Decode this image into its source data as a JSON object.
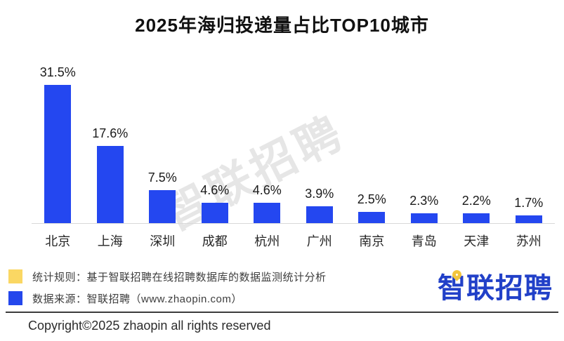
{
  "title": "2025年海归投递量占比TOP10城市",
  "watermark": "智联招聘",
  "chart_data": {
    "type": "bar",
    "title": "2025年海归投递量占比TOP10城市",
    "categories": [
      "北京",
      "上海",
      "深圳",
      "成都",
      "杭州",
      "广州",
      "南京",
      "青岛",
      "天津",
      "苏州"
    ],
    "values": [
      31.5,
      17.6,
      7.5,
      4.6,
      4.6,
      3.9,
      2.5,
      2.3,
      2.2,
      1.7
    ],
    "labels": [
      "31.5%",
      "17.6%",
      "7.5%",
      "4.6%",
      "4.6%",
      "3.9%",
      "2.5%",
      "2.3%",
      "2.2%",
      "1.7%"
    ],
    "xlabel": "",
    "ylabel": "",
    "ylim": [
      0,
      35
    ],
    "grid": false,
    "legend_position": "none",
    "bar_color": "#2447f0"
  },
  "notes": [
    {
      "swatch_color": "#fad763",
      "text": "统计规则：基于智联招聘在线招聘数据库的数据监测统计分析"
    },
    {
      "swatch_color": "#2447ec",
      "text": "数据来源：智联招聘（www.zhaopin.com）"
    }
  ],
  "logo": {
    "text": "智联招聘",
    "pin_color": "#f2c53d",
    "text_color": "#2140c8"
  },
  "copyright": "Copyright©2025 zhaopin all rights reserved",
  "colors": {
    "bar_blue": "#2447f0",
    "legend_yellow": "#fad763",
    "axis_line": "#d9d9d9",
    "divider": "#3c3c3c",
    "watermark_gray": "#c9c9c9"
  }
}
